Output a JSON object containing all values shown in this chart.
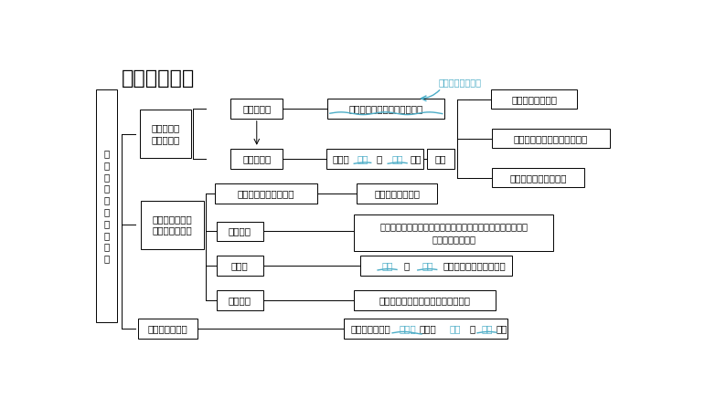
{
  "title": "教材知识萃取",
  "bg_color": "#ffffff",
  "title_color": "#000000",
  "title_fontsize": 16,
  "box_edge_color": "#000000",
  "box_fill_color": "#ffffff",
  "text_color": "#000000",
  "blue_color": "#4BACC6",
  "left_label": "从\n食\n物\n采\n集\n到\n食\n物\n生\n产",
  "annotation_text": "处于渔猎采集阶段",
  "annotation_color": "#4BACC6"
}
